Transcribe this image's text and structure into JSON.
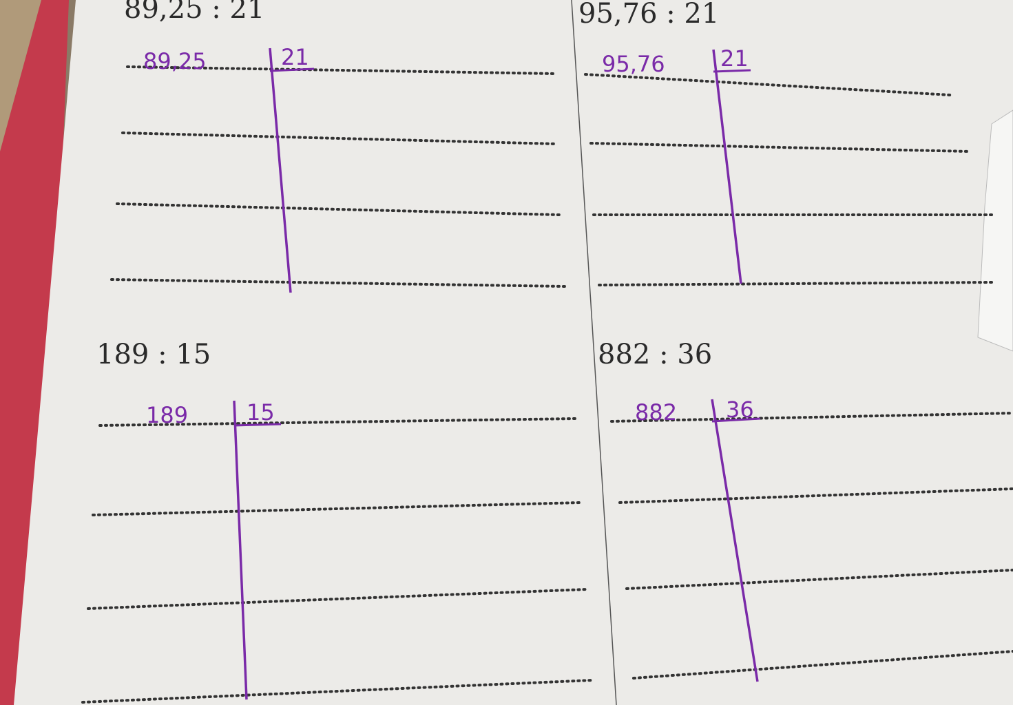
{
  "problems": [
    {
      "printed": "89,25 : 21",
      "dividend": "89,25",
      "divisor": "21"
    },
    {
      "printed": "95,76 : 21",
      "dividend": "95,76",
      "divisor": "21"
    },
    {
      "printed": "189 : 15",
      "dividend": "189",
      "divisor": "15"
    },
    {
      "printed": "882 : 36",
      "dividend": "882",
      "divisor": "36"
    }
  ],
  "colors": {
    "paper": "#ecebe8",
    "ink": "#7a2aa8",
    "folder": "#c43a4c",
    "print": "#2a2a2a"
  }
}
